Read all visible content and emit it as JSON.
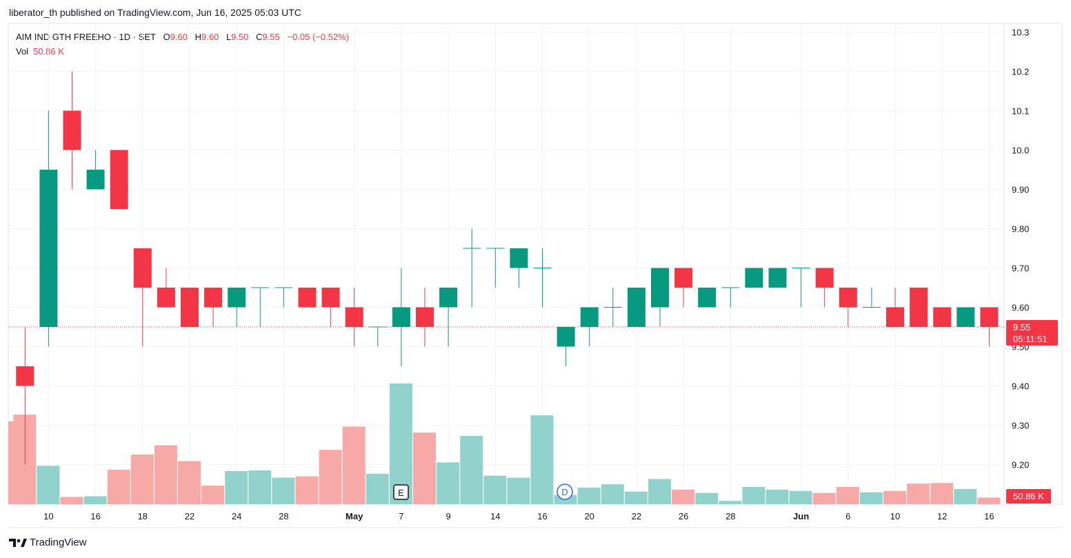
{
  "header": {
    "published": "liberator_th published on TradingView.com, Jun 16, 2025 05:03 UTC"
  },
  "legend": {
    "symbol": "AIM IND GTH FREEHO · 1D · SET",
    "o_label": "O",
    "o": "9.60",
    "h_label": "H",
    "h": "9.60",
    "l_label": "L",
    "l": "9.50",
    "c_label": "C",
    "c": "9.55",
    "change": "−0.05 (−0.52%)",
    "vol_label": "Vol",
    "vol": "50.86 K"
  },
  "footer": {
    "brand": "TradingView"
  },
  "colors": {
    "up": "#089981",
    "down": "#f23645",
    "vol_up": "#92d2cc",
    "vol_down": "#f7a9a7",
    "grid": "#f0f3fa"
  },
  "chart_data": {
    "type": "candlestick",
    "y_ticks": [
      "10.3",
      "10.2",
      "10.1",
      "10.0",
      "9.90",
      "9.80",
      "9.70",
      "9.60",
      "9.50",
      "9.40",
      "9.30",
      "9.20"
    ],
    "x_ticks": [
      "10",
      "16",
      "18",
      "22",
      "24",
      "28",
      "May",
      "7",
      "9",
      "14",
      "16",
      "20",
      "22",
      "26",
      "28",
      "Jun",
      "6",
      "10",
      "12",
      "16"
    ],
    "ylim": [
      9.14,
      10.32
    ],
    "last_price": "9.55",
    "countdown": "05:11:51",
    "last_volume": "50.86 K",
    "markers": [
      "E",
      "D"
    ],
    "candles": [
      {
        "o": 9.45,
        "h": 9.55,
        "l": 9.2,
        "c": 9.4,
        "v": 135
      },
      {
        "o": 9.55,
        "h": 10.1,
        "l": 9.5,
        "c": 9.95,
        "v": 58
      },
      {
        "o": 10.1,
        "h": 10.2,
        "l": 9.9,
        "c": 10.0,
        "v": 11
      },
      {
        "o": 9.9,
        "h": 10.0,
        "l": 9.9,
        "c": 9.95,
        "v": 12
      },
      {
        "o": 10.0,
        "h": 10.0,
        "l": 9.85,
        "c": 9.85,
        "v": 52
      },
      {
        "o": 9.75,
        "h": 9.75,
        "l": 9.5,
        "c": 9.65,
        "v": 75
      },
      {
        "o": 9.65,
        "h": 9.7,
        "l": 9.6,
        "c": 9.6,
        "v": 89
      },
      {
        "o": 9.65,
        "h": 9.65,
        "l": 9.55,
        "c": 9.55,
        "v": 65
      },
      {
        "o": 9.65,
        "h": 9.65,
        "l": 9.55,
        "c": 9.6,
        "v": 28
      },
      {
        "o": 9.6,
        "h": 9.65,
        "l": 9.55,
        "c": 9.65,
        "v": 50
      },
      {
        "o": 9.65,
        "h": 9.65,
        "l": 9.55,
        "c": 9.65,
        "v": 51
      },
      {
        "o": 9.65,
        "h": 9.65,
        "l": 9.6,
        "c": 9.65,
        "v": 40
      },
      {
        "o": 9.65,
        "h": 9.65,
        "l": 9.6,
        "c": 9.6,
        "v": 42
      },
      {
        "o": 9.65,
        "h": 9.65,
        "l": 9.55,
        "c": 9.6,
        "v": 82
      },
      {
        "o": 9.6,
        "h": 9.65,
        "l": 9.5,
        "c": 9.55,
        "v": 117
      },
      {
        "o": 9.55,
        "h": 9.55,
        "l": 9.5,
        "c": 9.55,
        "v": 46
      },
      {
        "o": 9.55,
        "h": 9.7,
        "l": 9.45,
        "c": 9.6,
        "v": 182
      },
      {
        "o": 9.6,
        "h": 9.65,
        "l": 9.5,
        "c": 9.55,
        "v": 108
      },
      {
        "o": 9.6,
        "h": 9.65,
        "l": 9.5,
        "c": 9.65,
        "v": 63
      },
      {
        "o": 9.75,
        "h": 9.8,
        "l": 9.6,
        "c": 9.75,
        "v": 103
      },
      {
        "o": 9.75,
        "h": 9.75,
        "l": 9.65,
        "c": 9.75,
        "v": 43
      },
      {
        "o": 9.7,
        "h": 9.75,
        "l": 9.65,
        "c": 9.75,
        "v": 40
      },
      {
        "o": 9.7,
        "h": 9.75,
        "l": 9.6,
        "c": 9.7,
        "v": 134
      },
      {
        "o": 9.5,
        "h": 9.55,
        "l": 9.45,
        "c": 9.55,
        "v": 14
      },
      {
        "o": 9.55,
        "h": 9.6,
        "l": 9.5,
        "c": 9.6,
        "v": 25
      },
      {
        "o": 9.6,
        "h": 9.65,
        "l": 9.55,
        "c": 9.6,
        "v": 30
      },
      {
        "o": 9.55,
        "h": 9.65,
        "l": 9.55,
        "c": 9.65,
        "v": 19
      },
      {
        "o": 9.6,
        "h": 9.7,
        "l": 9.55,
        "c": 9.7,
        "v": 38
      },
      {
        "o": 9.7,
        "h": 9.7,
        "l": 9.6,
        "c": 9.65,
        "v": 22
      },
      {
        "o": 9.6,
        "h": 9.65,
        "l": 9.6,
        "c": 9.65,
        "v": 17
      },
      {
        "o": 9.65,
        "h": 9.65,
        "l": 9.6,
        "c": 9.65,
        "v": 5
      },
      {
        "o": 9.65,
        "h": 9.7,
        "l": 9.65,
        "c": 9.7,
        "v": 26
      },
      {
        "o": 9.65,
        "h": 9.7,
        "l": 9.65,
        "c": 9.7,
        "v": 22
      },
      {
        "o": 9.7,
        "h": 9.7,
        "l": 9.6,
        "c": 9.7,
        "v": 20
      },
      {
        "o": 9.7,
        "h": 9.7,
        "l": 9.6,
        "c": 9.65,
        "v": 17
      },
      {
        "o": 9.65,
        "h": 9.65,
        "l": 9.55,
        "c": 9.6,
        "v": 26
      },
      {
        "o": 9.6,
        "h": 9.65,
        "l": 9.6,
        "c": 9.6,
        "v": 18
      },
      {
        "o": 9.6,
        "h": 9.65,
        "l": 9.55,
        "c": 9.55,
        "v": 20
      },
      {
        "o": 9.65,
        "h": 9.65,
        "l": 9.55,
        "c": 9.55,
        "v": 31
      },
      {
        "o": 9.6,
        "h": 9.6,
        "l": 9.55,
        "c": 9.55,
        "v": 32
      },
      {
        "o": 9.55,
        "h": 9.6,
        "l": 9.55,
        "c": 9.6,
        "v": 23
      },
      {
        "o": 9.6,
        "h": 9.6,
        "l": 9.5,
        "c": 9.55,
        "v": 10
      }
    ]
  }
}
